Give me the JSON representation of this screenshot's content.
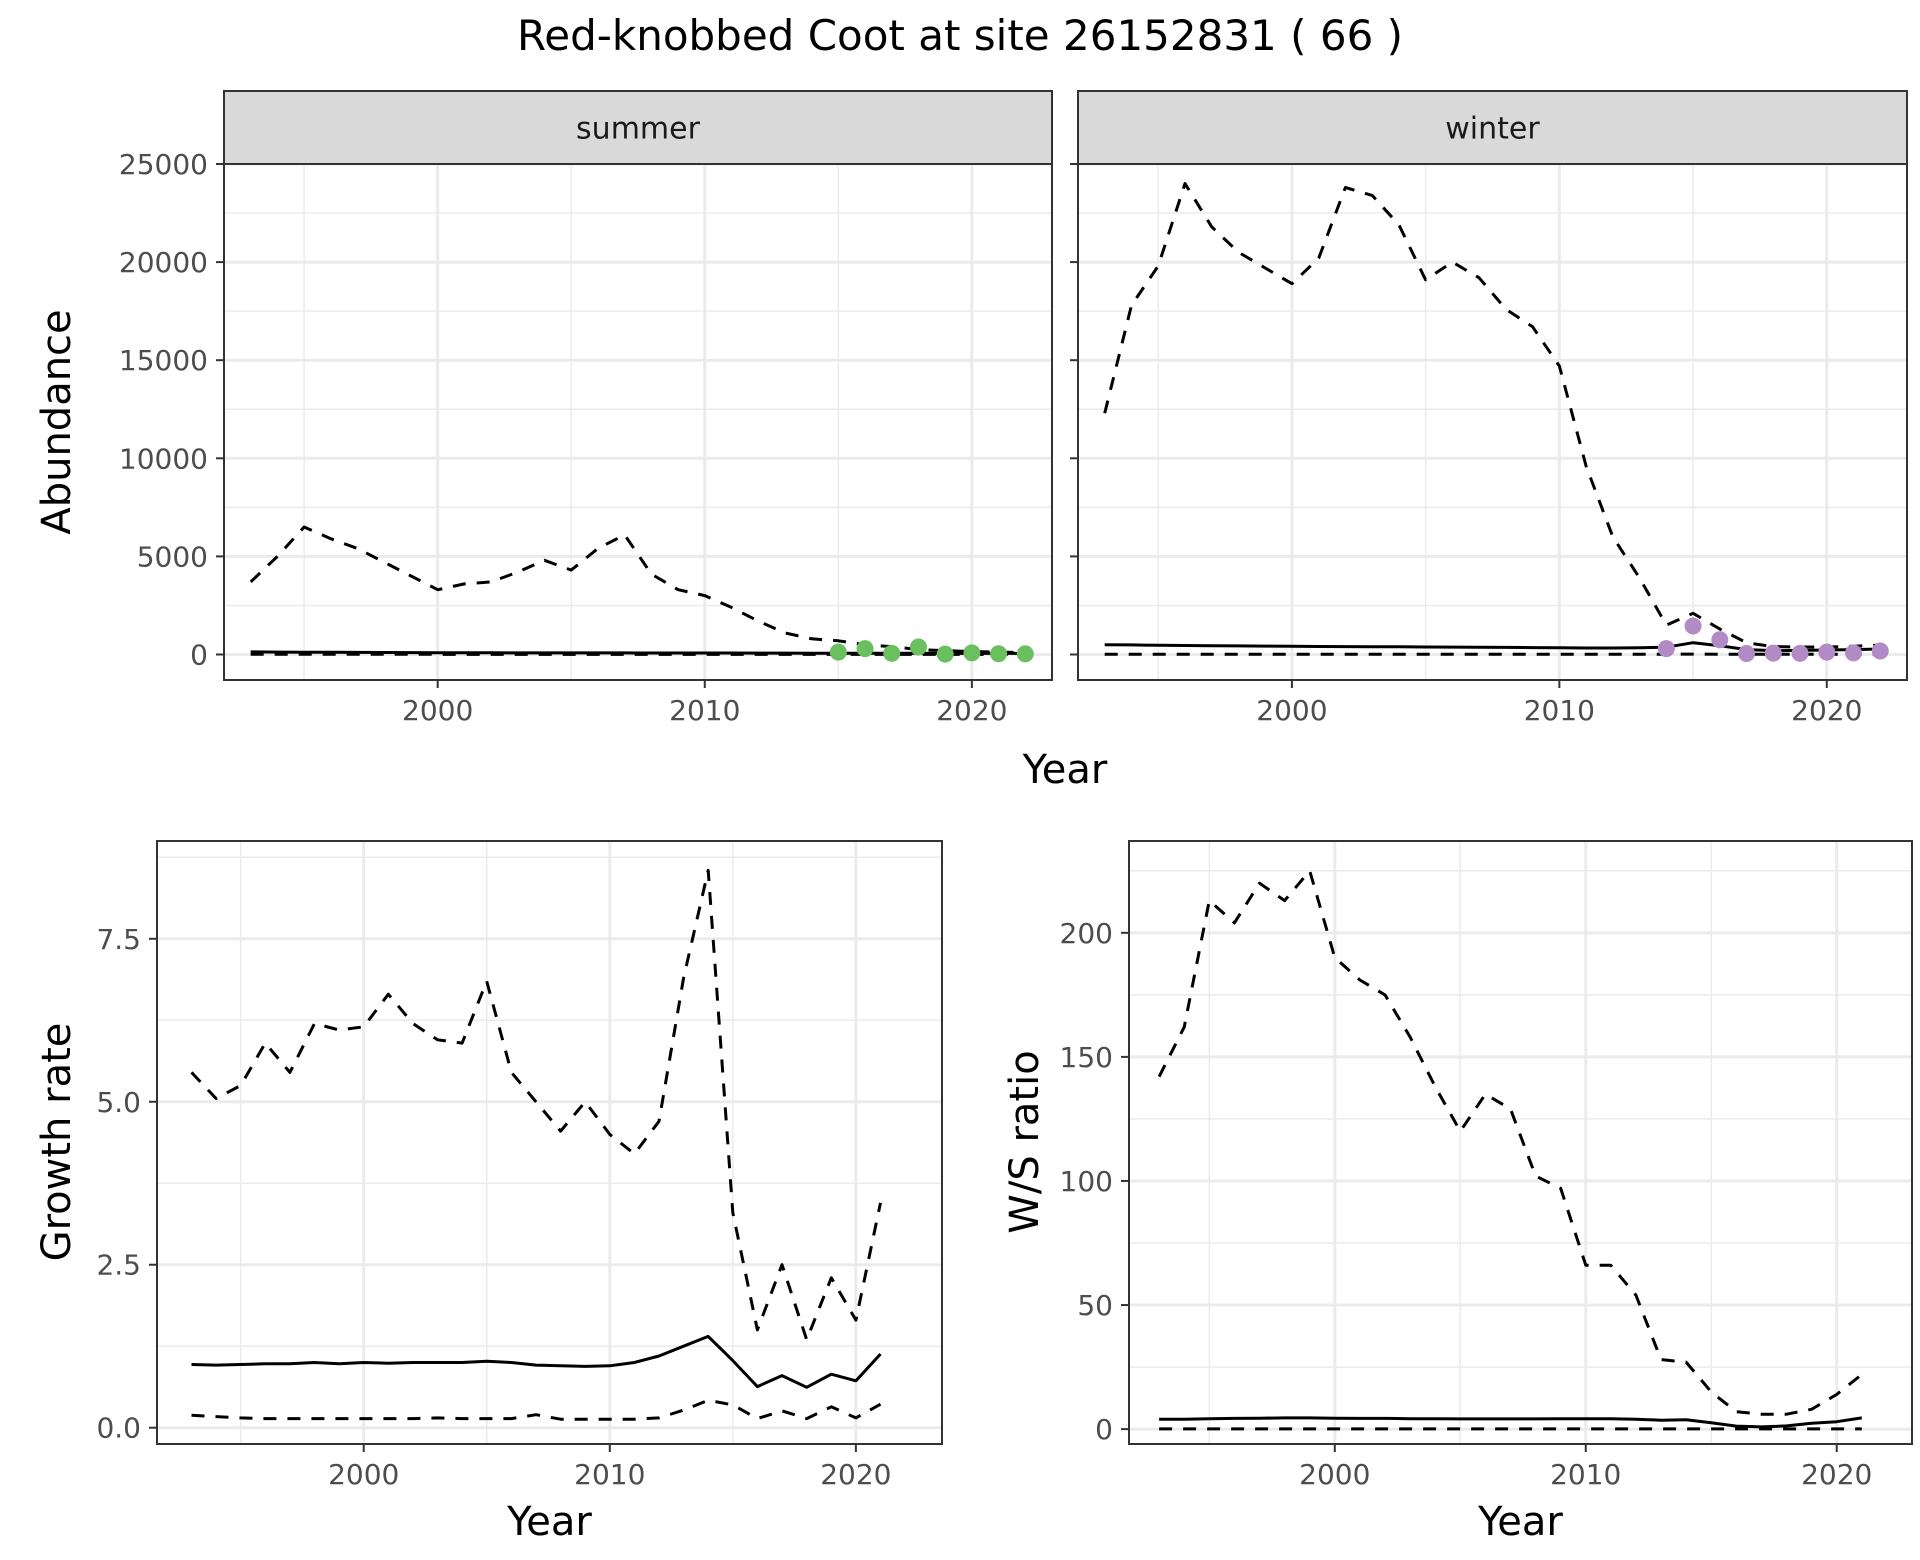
{
  "title": "Red-knobbed Coot at site 26152831 ( 66 )",
  "colors": {
    "summer_points": "#6abf5e",
    "winter_points": "#b28ac6",
    "line": "#000000",
    "strip": "#d9d9d9",
    "grid": "#ebebeb"
  },
  "chart_data": [
    {
      "type": "line",
      "panel": "summer",
      "strip": "summer",
      "xlabel": "Year",
      "ylabel": "Abundance",
      "xlim": [
        1992,
        2023
      ],
      "ylim": [
        -1300,
        25000
      ],
      "x_ticks": [
        2000,
        2010,
        2020
      ],
      "y_ticks": [
        0,
        5000,
        10000,
        15000,
        20000,
        25000
      ],
      "x": [
        1993,
        1994,
        1995,
        1996,
        1997,
        1998,
        1999,
        2000,
        2001,
        2002,
        2003,
        2004,
        2005,
        2006,
        2007,
        2008,
        2009,
        2010,
        2011,
        2012,
        2013,
        2014,
        2015,
        2016,
        2017,
        2018,
        2019,
        2020,
        2021,
        2022
      ],
      "series": [
        {
          "role": "estimate",
          "style": "solid",
          "values": [
            130,
            120,
            115,
            110,
            105,
            100,
            95,
            90,
            88,
            85,
            83,
            82,
            80,
            80,
            80,
            78,
            76,
            75,
            74,
            72,
            70,
            68,
            66,
            64,
            62,
            60,
            58,
            56,
            55,
            54
          ]
        },
        {
          "role": "upper",
          "style": "dashed",
          "values": [
            3700,
            5000,
            6500,
            5900,
            5400,
            4700,
            4000,
            3300,
            3600,
            3700,
            4200,
            4800,
            4300,
            5400,
            6100,
            4100,
            3300,
            3000,
            2400,
            1700,
            1100,
            800,
            700,
            500,
            400,
            250,
            200,
            150,
            120,
            100
          ]
        },
        {
          "role": "lower",
          "style": "dashed",
          "values": [
            10,
            9,
            9,
            9,
            8,
            8,
            8,
            8,
            7,
            7,
            7,
            7,
            7,
            7,
            6,
            6,
            6,
            6,
            6,
            5,
            5,
            5,
            5,
            5,
            4,
            4,
            4,
            4,
            4,
            4
          ]
        }
      ],
      "points": {
        "x": [
          2015,
          2016,
          2017,
          2018,
          2019,
          2020,
          2021,
          2022
        ],
        "y": [
          120,
          300,
          60,
          380,
          20,
          80,
          40,
          30
        ]
      }
    },
    {
      "type": "line",
      "panel": "winter",
      "strip": "winter",
      "xlabel": "Year",
      "ylabel": "",
      "xlim": [
        1992,
        2023
      ],
      "ylim": [
        -1300,
        25000
      ],
      "x_ticks": [
        2000,
        2010,
        2020
      ],
      "y_ticks": [
        0,
        5000,
        10000,
        15000,
        20000,
        25000
      ],
      "x": [
        1993,
        1994,
        1995,
        1996,
        1997,
        1998,
        1999,
        2000,
        2001,
        2002,
        2003,
        2004,
        2005,
        2006,
        2007,
        2008,
        2009,
        2010,
        2011,
        2012,
        2013,
        2014,
        2015,
        2016,
        2017,
        2018,
        2019,
        2020,
        2021,
        2022
      ],
      "series": [
        {
          "role": "estimate",
          "style": "solid",
          "values": [
            500,
            490,
            470,
            460,
            450,
            440,
            430,
            420,
            410,
            400,
            395,
            390,
            380,
            375,
            370,
            360,
            350,
            340,
            330,
            330,
            340,
            370,
            600,
            450,
            250,
            200,
            210,
            230,
            250,
            280
          ]
        },
        {
          "role": "upper",
          "style": "dashed",
          "values": [
            12300,
            17800,
            19800,
            24000,
            21800,
            20500,
            19700,
            18900,
            20200,
            23800,
            23400,
            21900,
            19100,
            20000,
            19200,
            17600,
            16700,
            14700,
            9600,
            6000,
            3900,
            1500,
            2100,
            1300,
            600,
            400,
            380,
            380,
            420,
            480
          ]
        },
        {
          "role": "lower",
          "style": "dashed",
          "values": [
            10,
            10,
            10,
            10,
            10,
            10,
            10,
            10,
            10,
            10,
            10,
            10,
            10,
            10,
            10,
            10,
            10,
            10,
            10,
            10,
            10,
            15,
            20,
            15,
            10,
            8,
            8,
            8,
            8,
            10
          ]
        }
      ],
      "points": {
        "x": [
          2014,
          2015,
          2016,
          2017,
          2018,
          2019,
          2020,
          2021,
          2022
        ],
        "y": [
          300,
          1450,
          750,
          50,
          70,
          60,
          120,
          80,
          180
        ]
      }
    },
    {
      "type": "line",
      "panel": "growth",
      "xlabel": "Year",
      "ylabel": "Growth rate",
      "xlim": [
        1991.6,
        2023.5
      ],
      "ylim": [
        -0.25,
        9.0
      ],
      "x_ticks": [
        2000,
        2010,
        2020
      ],
      "y_ticks": [
        0.0,
        2.5,
        5.0,
        7.5
      ],
      "y_tick_labels": [
        "0.0",
        "2.5",
        "5.0",
        "7.5"
      ],
      "x": [
        1993,
        1994,
        1995,
        1996,
        1997,
        1998,
        1999,
        2000,
        2001,
        2002,
        2003,
        2004,
        2005,
        2006,
        2007,
        2008,
        2009,
        2010,
        2011,
        2012,
        2013,
        2014,
        2015,
        2016,
        2017,
        2018,
        2019,
        2020,
        2021
      ],
      "series": [
        {
          "role": "estimate",
          "style": "solid",
          "values": [
            0.97,
            0.96,
            0.97,
            0.98,
            0.98,
            1.0,
            0.98,
            1.0,
            0.99,
            1.0,
            1.0,
            1.0,
            1.02,
            1.0,
            0.96,
            0.95,
            0.94,
            0.95,
            1.0,
            1.1,
            1.25,
            1.4,
            1.03,
            0.63,
            0.8,
            0.62,
            0.82,
            0.72,
            1.13
          ]
        },
        {
          "role": "upper",
          "style": "dashed",
          "values": [
            5.45,
            5.05,
            5.25,
            5.9,
            5.45,
            6.2,
            6.1,
            6.15,
            6.65,
            6.2,
            5.95,
            5.9,
            6.85,
            5.45,
            5.0,
            4.55,
            5.0,
            4.5,
            4.2,
            4.7,
            6.9,
            8.55,
            3.3,
            1.5,
            2.5,
            1.35,
            2.3,
            1.65,
            3.45
          ]
        },
        {
          "role": "lower",
          "style": "dashed",
          "values": [
            0.19,
            0.17,
            0.15,
            0.14,
            0.14,
            0.14,
            0.14,
            0.14,
            0.14,
            0.14,
            0.15,
            0.14,
            0.14,
            0.14,
            0.2,
            0.13,
            0.13,
            0.13,
            0.13,
            0.15,
            0.27,
            0.42,
            0.35,
            0.14,
            0.26,
            0.14,
            0.32,
            0.15,
            0.36
          ]
        }
      ]
    },
    {
      "type": "line",
      "panel": "ratio",
      "xlabel": "Year",
      "ylabel": "W/S ratio",
      "xlim": [
        1991.8,
        2023.0
      ],
      "ylim": [
        -6,
        237
      ],
      "x_ticks": [
        2000,
        2010,
        2020
      ],
      "y_ticks": [
        0,
        50,
        100,
        150,
        200
      ],
      "x": [
        1993,
        1994,
        1995,
        1996,
        1997,
        1998,
        1999,
        2000,
        2001,
        2002,
        2003,
        2004,
        2005,
        2006,
        2007,
        2008,
        2009,
        2010,
        2011,
        2012,
        2013,
        2014,
        2015,
        2016,
        2017,
        2018,
        2019,
        2020,
        2021
      ],
      "series": [
        {
          "role": "estimate",
          "style": "solid",
          "values": [
            4,
            4,
            4.2,
            4.3,
            4.4,
            4.5,
            4.5,
            4.4,
            4.3,
            4.3,
            4.2,
            4.2,
            4.1,
            4.1,
            4.1,
            4.1,
            4.2,
            4.2,
            4.2,
            4.0,
            3.6,
            3.8,
            2.6,
            1.2,
            0.9,
            1.3,
            2.4,
            3.0,
            4.5
          ]
        },
        {
          "role": "upper",
          "style": "dashed",
          "values": [
            142,
            162,
            213,
            204,
            220,
            213,
            225,
            190,
            181,
            175,
            158,
            138,
            120,
            135,
            129,
            102,
            97,
            66,
            66,
            54,
            28,
            27,
            15,
            7,
            6,
            6,
            8,
            14,
            22
          ]
        },
        {
          "role": "lower",
          "style": "dashed",
          "values": [
            0.1,
            0.1,
            0.1,
            0.1,
            0.1,
            0.1,
            0.1,
            0.1,
            0.1,
            0.1,
            0.1,
            0.1,
            0.1,
            0.1,
            0.1,
            0.1,
            0.1,
            0.1,
            0.1,
            0.1,
            0.1,
            0.1,
            0.1,
            0.1,
            0.1,
            0.1,
            0.1,
            0.1,
            0.1
          ]
        }
      ]
    }
  ],
  "shared_xlabel": "Year"
}
